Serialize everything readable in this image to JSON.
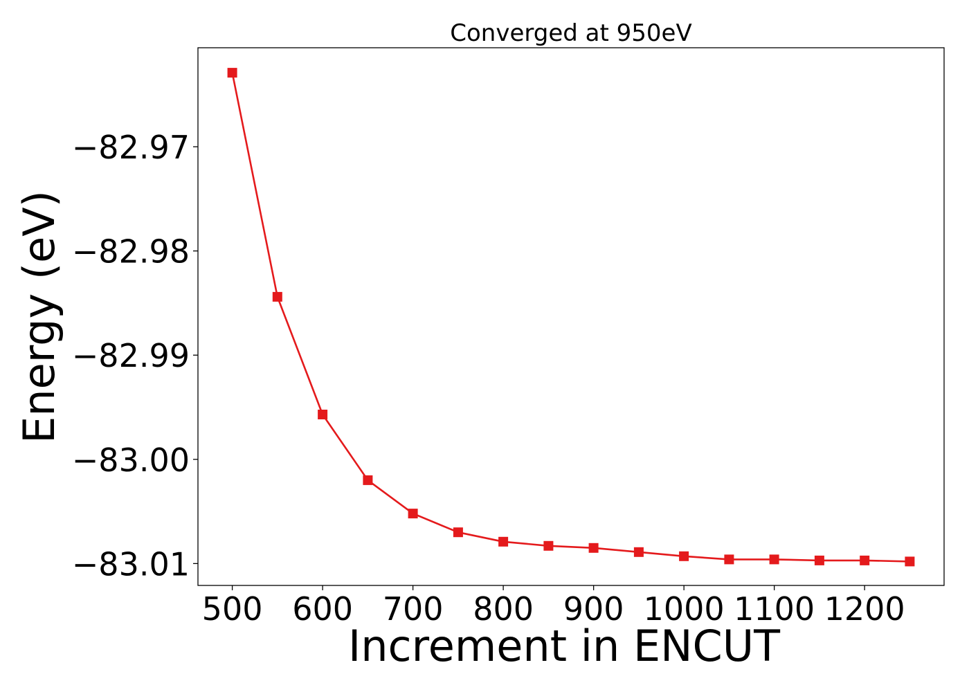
{
  "chart_data": {
    "type": "line",
    "title": "Converged at 950eV",
    "xlabel": "Increment in ENCUT",
    "ylabel": "Energy (eV)",
    "xlim": [
      462,
      1288
    ],
    "ylim": [
      -83.0121,
      -82.9605
    ],
    "x_ticks": [
      500,
      600,
      700,
      800,
      900,
      1000,
      1100,
      1200
    ],
    "x_tick_labels": [
      "500",
      "600",
      "700",
      "800",
      "900",
      "1000",
      "1100",
      "1200"
    ],
    "y_ticks": [
      -82.97,
      -82.98,
      -82.99,
      -83.0,
      -83.01
    ],
    "y_tick_labels": [
      "−82.97",
      "−82.98",
      "−82.99",
      "−83.00",
      "−83.01"
    ],
    "grid": false,
    "series": [
      {
        "color": "#e41a1c",
        "marker": "square",
        "x": [
          500,
          550,
          600,
          650,
          700,
          750,
          800,
          850,
          900,
          950,
          1000,
          1050,
          1100,
          1150,
          1200,
          1250
        ],
        "y": [
          -82.9629,
          -82.9844,
          -82.9957,
          -83.002,
          -83.0052,
          -83.007,
          -83.0079,
          -83.0083,
          -83.0085,
          -83.0089,
          -83.0093,
          -83.0096,
          -83.0096,
          -83.0097,
          -83.0097,
          -83.0098
        ]
      }
    ]
  }
}
